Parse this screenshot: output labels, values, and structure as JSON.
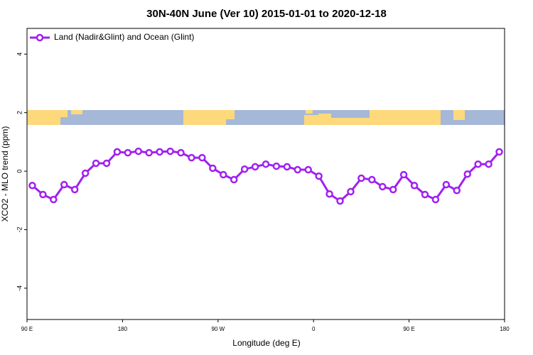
{
  "chart_data": {
    "type": "line",
    "title": "30N-40N June (Ver 10)   2015-01-01 to 2020-12-18",
    "x_label": "Longitude (deg E)",
    "y_label": "XCO2 - MLO trend (ppm)",
    "x": [
      95,
      105,
      115,
      125,
      135,
      145,
      155,
      165,
      175,
      185,
      195,
      205,
      215,
      225,
      235,
      245,
      255,
      265,
      275,
      285,
      295,
      305,
      315,
      325,
      335,
      345,
      355,
      365,
      375,
      385,
      395,
      405,
      415,
      425,
      435,
      445,
      455,
      465,
      475,
      485,
      495,
      505,
      515,
      525,
      535
    ],
    "series": [
      {
        "name": "Land (Nadir&Glint) and Ocean (Glint)",
        "color": "#a020f0",
        "values": [
          -0.49,
          -0.8,
          -0.97,
          -0.46,
          -0.63,
          -0.07,
          0.27,
          0.27,
          0.66,
          0.63,
          0.68,
          0.63,
          0.66,
          0.68,
          0.63,
          0.46,
          0.46,
          0.1,
          -0.12,
          -0.29,
          0.07,
          0.15,
          0.24,
          0.17,
          0.15,
          0.05,
          0.05,
          -0.17,
          -0.78,
          -1.02,
          -0.7,
          -0.24,
          -0.29,
          -0.53,
          -0.63,
          -0.12,
          -0.49,
          -0.8,
          -0.97,
          -0.46,
          -0.66,
          -0.1,
          0.24,
          0.24,
          0.66
        ]
      }
    ],
    "xlim": [
      90,
      540
    ],
    "xticks": [
      {
        "value": 90,
        "label": "90 E"
      },
      180,
      {
        "value": 270,
        "label": "90 W"
      },
      {
        "value": 360,
        "label": "0"
      },
      {
        "value": 450,
        "label": "90 E"
      },
      {
        "value": 540,
        "label": "180"
      }
    ],
    "ylim": [
      -5.07,
      4.88
    ],
    "yticks": [
      -4,
      -2,
      0,
      2,
      4
    ],
    "legend": "top-left"
  }
}
